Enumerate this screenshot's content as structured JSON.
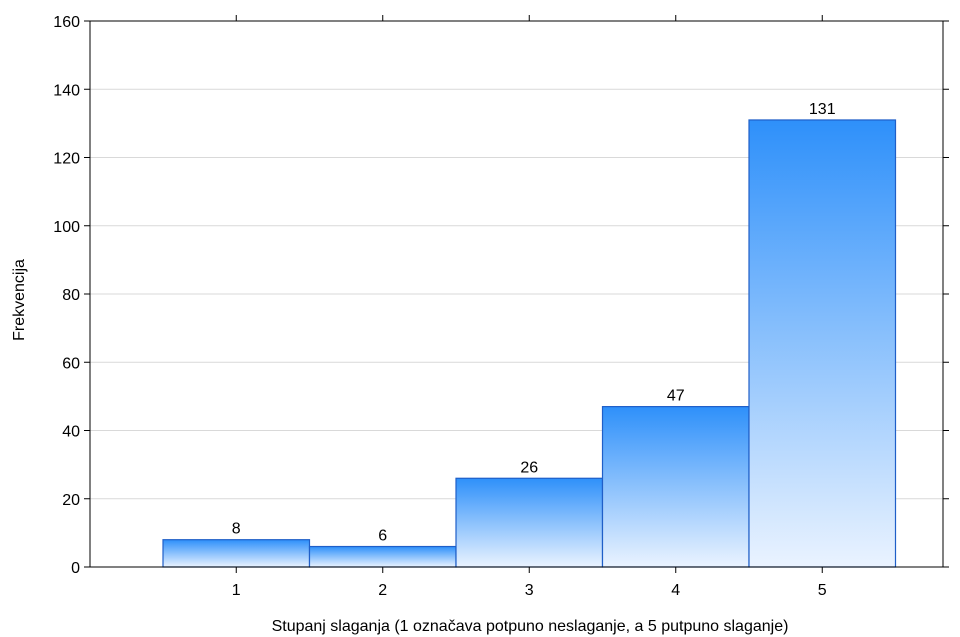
{
  "chart_data": {
    "type": "bar",
    "title": "",
    "xlabel": "Stupanj slaganja (1 označava potpuno neslaganje, a 5 putpuno slaganje)",
    "ylabel": "Frekvencija",
    "categories": [
      "1",
      "2",
      "3",
      "4",
      "5"
    ],
    "values": [
      8,
      6,
      26,
      47,
      131
    ],
    "data_labels": [
      "8",
      "6",
      "26",
      "47",
      "131"
    ],
    "ylim": [
      0,
      160
    ],
    "yticks": [
      0,
      20,
      40,
      60,
      80,
      100,
      120,
      140,
      160
    ],
    "ytick_labels": [
      "0",
      "20",
      "40",
      "60",
      "80",
      "100",
      "120",
      "140",
      "160"
    ],
    "grid": true,
    "legend": "none",
    "colors": {
      "bar_top": "#2e90fa",
      "bar_bottom": "#eaf3ff",
      "bar_edge": "#1f5fc8",
      "grid": "#d9d9d9",
      "axis": "#000000"
    }
  }
}
